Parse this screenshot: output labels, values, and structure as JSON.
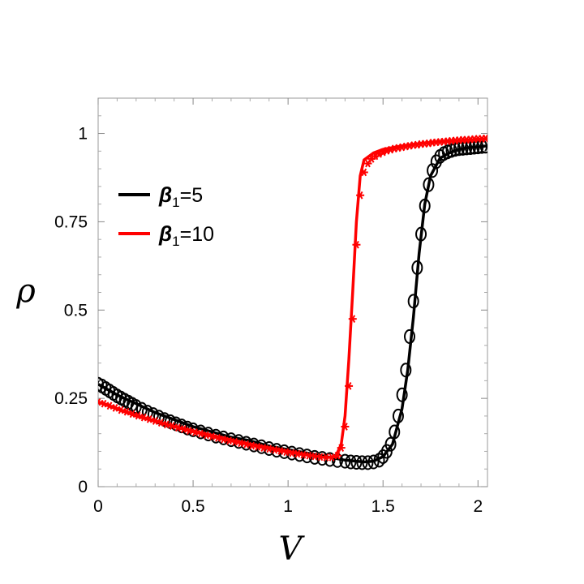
{
  "chart_data": {
    "type": "line",
    "xlabel": "V",
    "ylabel": "ρ",
    "xlim": [
      0,
      2.05
    ],
    "ylim": [
      0,
      1.1
    ],
    "xticks": [
      "0",
      "0.5",
      "1",
      "1.5",
      "2"
    ],
    "xtick_values": [
      0,
      0.5,
      1,
      1.5,
      2
    ],
    "yticks": [
      "0",
      "0.25",
      "0.5",
      "0.75",
      "1"
    ],
    "ytick_values": [
      0,
      0.25,
      0.5,
      0.75,
      1
    ],
    "legend_position": "upper-left",
    "series": [
      {
        "name": "β1=5",
        "legend_prefix": "β",
        "legend_sub": "1",
        "legend_suffix": "=5",
        "color": "#000000",
        "marker": "circle",
        "line_x": [
          0,
          0.1,
          0.2,
          0.3,
          0.4,
          0.5,
          0.6,
          0.7,
          0.8,
          0.9,
          1.0,
          1.1,
          1.2,
          1.3,
          1.4,
          1.45,
          1.5,
          1.55,
          1.6,
          1.63,
          1.66,
          1.69,
          1.72,
          1.75,
          1.8,
          1.85,
          1.9,
          1.95,
          2.0,
          2.05
        ],
        "line_y": [
          0.29,
          0.26,
          0.235,
          0.21,
          0.19,
          0.17,
          0.155,
          0.14,
          0.13,
          0.115,
          0.105,
          0.095,
          0.085,
          0.075,
          0.07,
          0.072,
          0.085,
          0.12,
          0.22,
          0.33,
          0.48,
          0.66,
          0.8,
          0.88,
          0.93,
          0.945,
          0.955,
          0.96,
          0.962,
          0.965
        ],
        "markers_x": [
          0,
          0.02,
          0.04,
          0.06,
          0.08,
          0.1,
          0.12,
          0.14,
          0.16,
          0.18,
          0.2,
          0.23,
          0.26,
          0.29,
          0.32,
          0.35,
          0.38,
          0.41,
          0.44,
          0.47,
          0.5,
          0.54,
          0.58,
          0.62,
          0.66,
          0.7,
          0.74,
          0.78,
          0.82,
          0.86,
          0.9,
          0.94,
          0.98,
          1.02,
          1.06,
          1.1,
          1.14,
          1.18,
          1.22,
          1.26,
          1.3,
          1.33,
          1.36,
          1.39,
          1.42,
          1.45,
          1.48,
          1.5,
          1.52,
          1.54,
          1.56,
          1.58,
          1.6,
          1.62,
          1.64,
          1.66,
          1.68,
          1.7,
          1.72,
          1.74,
          1.76,
          1.78,
          1.8,
          1.82,
          1.84,
          1.86,
          1.88,
          1.9,
          1.92,
          1.94,
          1.96,
          1.98,
          2.0,
          2.02,
          2.04
        ],
        "markers_y": [
          0.29,
          0.285,
          0.278,
          0.271,
          0.264,
          0.257,
          0.251,
          0.245,
          0.239,
          0.233,
          0.227,
          0.219,
          0.211,
          0.204,
          0.197,
          0.19,
          0.184,
          0.178,
          0.172,
          0.166,
          0.161,
          0.155,
          0.149,
          0.143,
          0.138,
          0.133,
          0.128,
          0.123,
          0.118,
          0.113,
          0.108,
          0.103,
          0.099,
          0.095,
          0.091,
          0.087,
          0.083,
          0.08,
          0.077,
          0.074,
          0.072,
          0.07,
          0.069,
          0.068,
          0.068,
          0.07,
          0.075,
          0.085,
          0.1,
          0.12,
          0.155,
          0.2,
          0.26,
          0.33,
          0.425,
          0.525,
          0.62,
          0.715,
          0.795,
          0.855,
          0.895,
          0.92,
          0.935,
          0.943,
          0.948,
          0.952,
          0.955,
          0.957,
          0.958,
          0.959,
          0.96,
          0.961,
          0.962,
          0.963,
          0.964
        ]
      },
      {
        "name": "β1=10",
        "legend_prefix": "β",
        "legend_sub": "1",
        "legend_suffix": "=10",
        "color": "#ff0000",
        "marker": "star",
        "line_x": [
          0,
          0.1,
          0.2,
          0.3,
          0.4,
          0.5,
          0.6,
          0.7,
          0.8,
          0.9,
          1.0,
          1.1,
          1.2,
          1.25,
          1.28,
          1.3,
          1.32,
          1.34,
          1.36,
          1.38,
          1.4,
          1.45,
          1.5,
          1.6,
          1.7,
          1.8,
          1.9,
          2.0,
          2.05
        ],
        "line_y": [
          0.24,
          0.22,
          0.2,
          0.185,
          0.17,
          0.158,
          0.145,
          0.132,
          0.12,
          0.11,
          0.1,
          0.09,
          0.082,
          0.085,
          0.12,
          0.2,
          0.36,
          0.55,
          0.75,
          0.88,
          0.925,
          0.945,
          0.955,
          0.965,
          0.972,
          0.977,
          0.98,
          0.983,
          0.985
        ],
        "markers_x": [
          0,
          0.03,
          0.06,
          0.09,
          0.12,
          0.15,
          0.18,
          0.21,
          0.24,
          0.27,
          0.3,
          0.33,
          0.36,
          0.39,
          0.42,
          0.45,
          0.48,
          0.51,
          0.54,
          0.57,
          0.6,
          0.63,
          0.66,
          0.69,
          0.72,
          0.75,
          0.78,
          0.81,
          0.84,
          0.87,
          0.9,
          0.93,
          0.96,
          0.99,
          1.02,
          1.05,
          1.08,
          1.11,
          1.14,
          1.17,
          1.2,
          1.23,
          1.26,
          1.28,
          1.3,
          1.32,
          1.34,
          1.36,
          1.38,
          1.4,
          1.42,
          1.44,
          1.46,
          1.48,
          1.5,
          1.52,
          1.54,
          1.56,
          1.58,
          1.6,
          1.62,
          1.64,
          1.66,
          1.68,
          1.7,
          1.72,
          1.74,
          1.76,
          1.78,
          1.8,
          1.82,
          1.84,
          1.86,
          1.88,
          1.9,
          1.92,
          1.94,
          1.96,
          1.98,
          2.0,
          2.02,
          2.04
        ],
        "markers_y": [
          0.24,
          0.235,
          0.229,
          0.223,
          0.217,
          0.212,
          0.206,
          0.201,
          0.196,
          0.191,
          0.186,
          0.181,
          0.176,
          0.172,
          0.167,
          0.163,
          0.158,
          0.154,
          0.15,
          0.146,
          0.142,
          0.138,
          0.134,
          0.13,
          0.127,
          0.123,
          0.12,
          0.116,
          0.113,
          0.11,
          0.107,
          0.104,
          0.101,
          0.098,
          0.095,
          0.093,
          0.09,
          0.088,
          0.086,
          0.084,
          0.083,
          0.083,
          0.088,
          0.11,
          0.17,
          0.285,
          0.475,
          0.685,
          0.825,
          0.89,
          0.915,
          0.928,
          0.936,
          0.942,
          0.947,
          0.951,
          0.954,
          0.957,
          0.959,
          0.961,
          0.963,
          0.965,
          0.967,
          0.968,
          0.97,
          0.971,
          0.972,
          0.974,
          0.975,
          0.976,
          0.977,
          0.978,
          0.979,
          0.98,
          0.981,
          0.982,
          0.982,
          0.983,
          0.984,
          0.985,
          0.985,
          0.986
        ]
      }
    ]
  }
}
